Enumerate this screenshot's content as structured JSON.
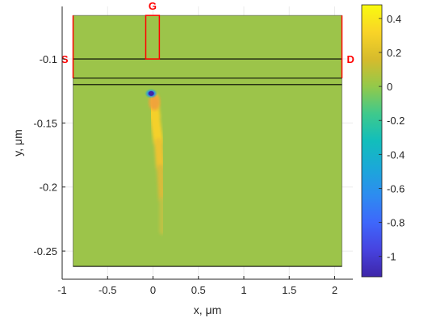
{
  "chart_data": {
    "type": "heatmap",
    "title": "",
    "xlabel": "x, μm",
    "ylabel": "y, μm",
    "xlim": [
      -1.0,
      2.2
    ],
    "ylim": [
      -0.272,
      -0.059
    ],
    "x_ticks": [
      -1,
      -0.5,
      0,
      0.5,
      1,
      1.5,
      2
    ],
    "x_tick_labels": [
      "-1",
      "-0.5",
      "0",
      "0.5",
      "1",
      "1.5",
      "2"
    ],
    "y_ticks": [
      -0.1,
      -0.15,
      -0.2,
      -0.25
    ],
    "y_tick_labels": [
      "-0.1",
      "-0.15",
      "-0.2",
      "-0.25"
    ],
    "grid": true,
    "device_region": {
      "x": [
        -0.88,
        2.08
      ],
      "y": [
        -0.262,
        -0.066
      ]
    },
    "layer_lines_y": [
      -0.1,
      -0.115,
      -0.12,
      -0.262
    ],
    "gate_box": {
      "x": [
        -0.08,
        0.07
      ],
      "y": [
        -0.1,
        -0.066
      ]
    },
    "background_value": 0,
    "hotspot": {
      "negative_blob": {
        "x": -0.02,
        "y": -0.127,
        "value": -1.1
      },
      "positive_tail": [
        {
          "x": -0.01,
          "y": -0.13,
          "value": 0.45
        },
        {
          "x": 0.02,
          "y": -0.145,
          "value": 0.4
        },
        {
          "x": 0.06,
          "y": -0.165,
          "value": 0.3
        },
        {
          "x": 0.08,
          "y": -0.185,
          "value": 0.22
        },
        {
          "x": 0.1,
          "y": -0.21,
          "value": 0.12
        },
        {
          "x": 0.1,
          "y": -0.235,
          "value": 0.05
        }
      ]
    },
    "markers": [
      {
        "text": "S",
        "x": -0.88,
        "y": -0.1
      },
      {
        "text": "D",
        "x": 2.08,
        "y": -0.1
      },
      {
        "text": "G",
        "x": -0.005,
        "y": -0.066
      }
    ],
    "colorbar": {
      "colormap": "parula",
      "range": [
        -1.12,
        0.48
      ],
      "ticks": [
        0.4,
        0.2,
        0,
        -0.2,
        -0.4,
        -0.6,
        -0.8,
        -1
      ],
      "tick_labels": [
        "0.4",
        "0.2",
        "0",
        "-0.2",
        "-0.4",
        "-0.6",
        "-0.8",
        "-1"
      ]
    },
    "colors": {
      "background_field": "#9cc44a",
      "electrode": "#ff0000",
      "layer_line": "#000000"
    }
  }
}
